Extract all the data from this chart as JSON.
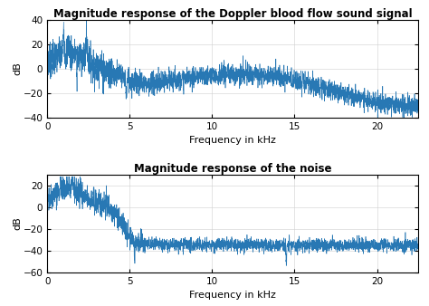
{
  "title1": "Magnitude response of the Doppler blood flow sound signal",
  "title2": "Magnitude response of the noise",
  "xlabel": "Frequency in kHz",
  "ylabel": "dB",
  "xlim": [
    0,
    22.5
  ],
  "ylim1": [
    -40,
    40
  ],
  "ylim2": [
    -60,
    30
  ],
  "yticks1": [
    -40,
    -20,
    0,
    20,
    40
  ],
  "yticks2": [
    -60,
    -40,
    -20,
    0,
    20
  ],
  "xticks": [
    0,
    5,
    10,
    15,
    20
  ],
  "line_color": "#2878b4",
  "bg_color": "#ffffff",
  "title_fontsize": 8.5,
  "label_fontsize": 8,
  "tick_fontsize": 7.5,
  "n_points": 3000
}
